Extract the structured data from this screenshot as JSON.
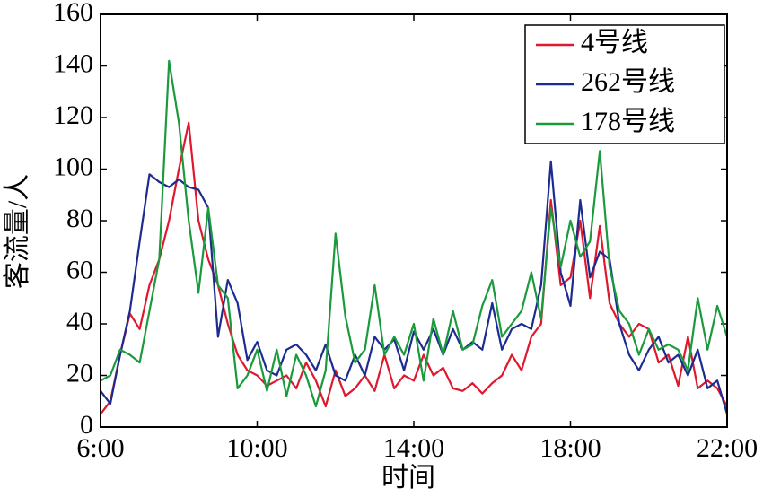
{
  "chart_data": {
    "type": "line",
    "xlabel": "时间",
    "ylabel": "客流量/人",
    "x": [
      6,
      6.25,
      6.5,
      6.75,
      7,
      7.25,
      7.5,
      7.75,
      8,
      8.25,
      8.5,
      8.75,
      9,
      9.25,
      9.5,
      9.75,
      10,
      10.25,
      10.5,
      10.75,
      11,
      11.25,
      11.5,
      11.75,
      12,
      12.25,
      12.5,
      12.75,
      13,
      13.25,
      13.5,
      13.75,
      14,
      14.25,
      14.5,
      14.75,
      15,
      15.25,
      15.5,
      15.75,
      16,
      16.25,
      16.5,
      16.75,
      17,
      17.25,
      17.5,
      17.75,
      18,
      18.25,
      18.5,
      18.75,
      19,
      19.25,
      19.5,
      19.75,
      20,
      20.25,
      20.5,
      20.75,
      21,
      21.25,
      21.5,
      21.75,
      22
    ],
    "series": [
      {
        "name": "4号线",
        "color": "#e0182d",
        "values": [
          5,
          10,
          28,
          44,
          38,
          55,
          65,
          80,
          100,
          118,
          80,
          65,
          55,
          40,
          28,
          22,
          20,
          16,
          18,
          20,
          15,
          25,
          18,
          8,
          22,
          12,
          15,
          20,
          14,
          28,
          15,
          20,
          18,
          28,
          20,
          23,
          15,
          14,
          17,
          13,
          17,
          20,
          28,
          22,
          35,
          40,
          88,
          55,
          58,
          80,
          50,
          78,
          48,
          40,
          35,
          40,
          38,
          25,
          28,
          16,
          35,
          15,
          18,
          15,
          8
        ]
      },
      {
        "name": "262号线",
        "color": "#1c2b8f",
        "values": [
          14,
          9,
          28,
          45,
          72,
          98,
          95,
          93,
          96,
          93,
          92,
          85,
          35,
          57,
          48,
          26,
          33,
          22,
          20,
          30,
          32,
          28,
          22,
          32,
          20,
          18,
          28,
          20,
          35,
          30,
          34,
          22,
          37,
          30,
          38,
          28,
          38,
          30,
          33,
          30,
          48,
          30,
          38,
          40,
          38,
          55,
          103,
          60,
          47,
          88,
          58,
          68,
          65,
          40,
          28,
          22,
          30,
          35,
          25,
          28,
          20,
          30,
          15,
          18,
          5
        ]
      },
      {
        "name": "178号线",
        "color": "#1a9a3c",
        "values": [
          18,
          20,
          30,
          28,
          25,
          45,
          65,
          142,
          118,
          80,
          52,
          85,
          55,
          50,
          15,
          20,
          30,
          14,
          30,
          12,
          28,
          20,
          8,
          22,
          75,
          43,
          25,
          30,
          55,
          28,
          35,
          28,
          40,
          18,
          42,
          28,
          45,
          30,
          32,
          47,
          57,
          35,
          40,
          45,
          60,
          42,
          85,
          62,
          80,
          66,
          72,
          107,
          62,
          45,
          40,
          28,
          38,
          30,
          32,
          30,
          22,
          50,
          30,
          47,
          35
        ]
      }
    ],
    "xlim": [
      6,
      22
    ],
    "xticks": [
      {
        "value": 6,
        "label": "6:00"
      },
      {
        "value": 10,
        "label": "10:00"
      },
      {
        "value": 14,
        "label": "14:00"
      },
      {
        "value": 18,
        "label": "18:00"
      },
      {
        "value": 22,
        "label": "22:00"
      }
    ],
    "ylim": [
      0,
      160
    ],
    "yticks": [
      0,
      20,
      40,
      60,
      80,
      100,
      120,
      140,
      160
    ],
    "legend": "upper right"
  }
}
